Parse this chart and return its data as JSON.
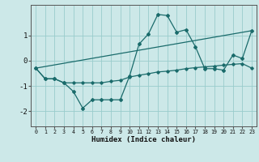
{
  "title": "",
  "xlabel": "Humidex (Indice chaleur)",
  "background_color": "#cce8e8",
  "grid_color": "#99cccc",
  "line_color": "#1a6b6b",
  "xlim": [
    -0.5,
    23.5
  ],
  "ylim": [
    -2.6,
    2.2
  ],
  "yticks": [
    -2,
    -1,
    0,
    1
  ],
  "xticks": [
    0,
    1,
    2,
    3,
    4,
    5,
    6,
    7,
    8,
    9,
    10,
    11,
    12,
    13,
    14,
    15,
    16,
    17,
    18,
    19,
    20,
    21,
    22,
    23
  ],
  "line1_x": [
    0,
    1,
    2,
    3,
    4,
    5,
    6,
    7,
    8,
    9,
    10,
    11,
    12,
    13,
    14,
    15,
    16,
    17,
    18,
    19,
    20,
    21,
    22,
    23
  ],
  "line1_y": [
    -0.3,
    -0.72,
    -0.72,
    -0.88,
    -1.22,
    -1.88,
    -1.55,
    -1.55,
    -1.55,
    -1.55,
    -0.6,
    0.65,
    1.05,
    1.82,
    1.78,
    1.12,
    1.22,
    0.55,
    -0.32,
    -0.32,
    -0.38,
    0.22,
    0.08,
    1.18
  ],
  "line2_x": [
    0,
    1,
    2,
    3,
    4,
    5,
    6,
    7,
    8,
    9,
    10,
    11,
    12,
    13,
    14,
    15,
    16,
    17,
    18,
    19,
    20,
    21,
    22,
    23
  ],
  "line2_y": [
    -0.3,
    -0.72,
    -0.72,
    -0.88,
    -0.88,
    -0.88,
    -0.88,
    -0.88,
    -0.82,
    -0.78,
    -0.65,
    -0.58,
    -0.52,
    -0.45,
    -0.42,
    -0.38,
    -0.32,
    -0.28,
    -0.25,
    -0.22,
    -0.18,
    -0.15,
    -0.12,
    -0.3
  ],
  "line3_x": [
    0,
    23
  ],
  "line3_y": [
    -0.3,
    1.18
  ]
}
